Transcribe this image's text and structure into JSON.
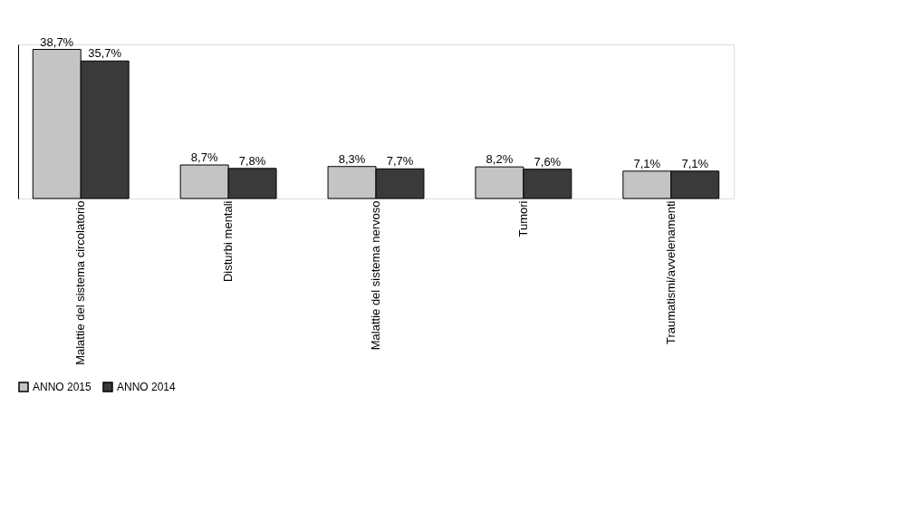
{
  "chart_data": {
    "type": "bar",
    "categories": [
      "Malattie del sistema circolatorio",
      "Disturbi mentali",
      "Malattie del sistema nervoso",
      "Tumori",
      "Traumatismi/avvelenamenti"
    ],
    "series": [
      {
        "name": "ANNO 2015",
        "color": "#c4c4c4",
        "values": [
          38.7,
          8.7,
          8.3,
          8.2,
          7.1
        ],
        "value_labels": [
          "38,7%",
          "8,7%",
          "8,3%",
          "8,2%",
          "7,1%"
        ]
      },
      {
        "name": "ANNO 2014",
        "color": "#3a3a3a",
        "values": [
          35.7,
          7.8,
          7.7,
          7.6,
          7.1
        ],
        "value_labels": [
          "35,7%",
          "7,8%",
          "7,7%",
          "7,6%",
          "7,1%"
        ]
      }
    ],
    "tick_labels": "x",
    "legend": "bottom"
  }
}
